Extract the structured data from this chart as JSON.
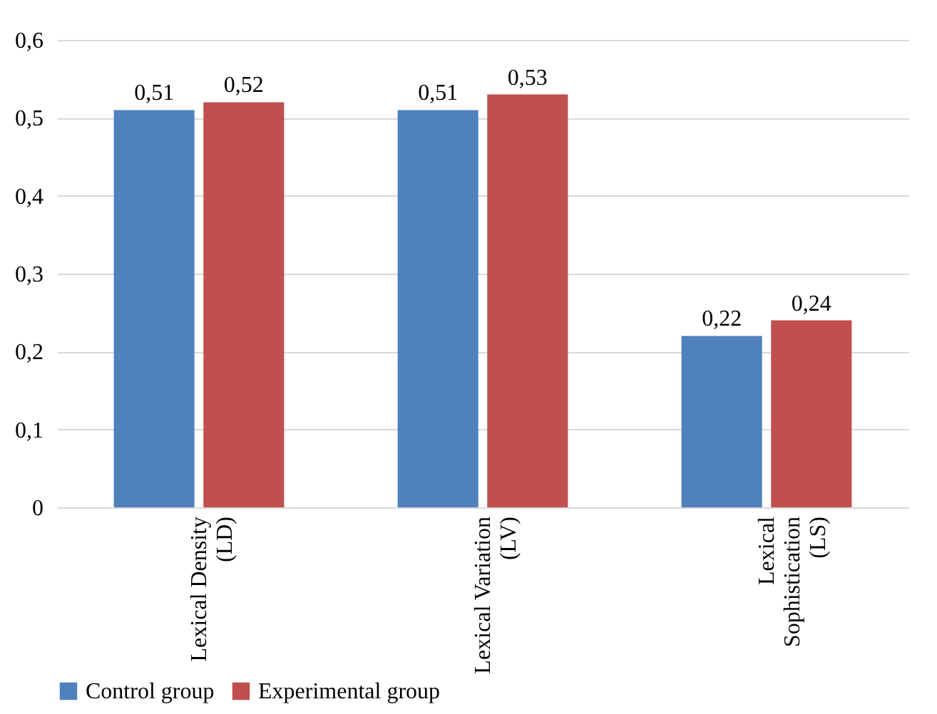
{
  "chart_data": {
    "type": "bar",
    "categories": [
      "Lexical Density (LD)",
      "Lexical Variation (LV)",
      "Lexical Sophistication (LS)"
    ],
    "series": [
      {
        "name": "Control group",
        "color": "#4f81bd",
        "values": [
          0.51,
          0.51,
          0.22
        ],
        "value_labels": [
          "0,51",
          "0,51",
          "0,22"
        ]
      },
      {
        "name": "Experimental group",
        "color": "#c0504d",
        "values": [
          0.52,
          0.53,
          0.24
        ],
        "value_labels": [
          "0,52",
          "0,53",
          "0,24"
        ]
      }
    ],
    "ylim": [
      0,
      0.6
    ],
    "yticks": [
      0,
      {
        "value": 0.1,
        "label": "0,1"
      },
      {
        "value": 0.2,
        "label": "0,2"
      },
      {
        "value": 0.3,
        "label": "0,3"
      },
      {
        "value": 0.4,
        "label": "0,4"
      },
      {
        "value": 0.5,
        "label": "0,5"
      },
      {
        "value": 0.6,
        "label": "0,6"
      }
    ],
    "grid": "y",
    "legend": "bottom"
  }
}
